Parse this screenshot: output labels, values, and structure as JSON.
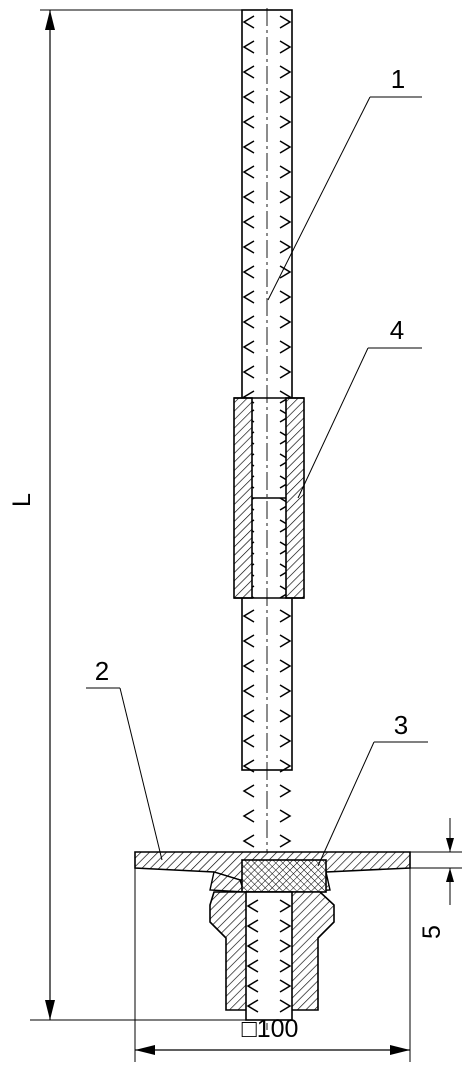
{
  "callouts": {
    "rod": "1",
    "washer": "2",
    "nut": "3",
    "coupler": "4"
  },
  "dimensions": {
    "length": "L",
    "thickness": "5",
    "plate_size": "□100"
  }
}
